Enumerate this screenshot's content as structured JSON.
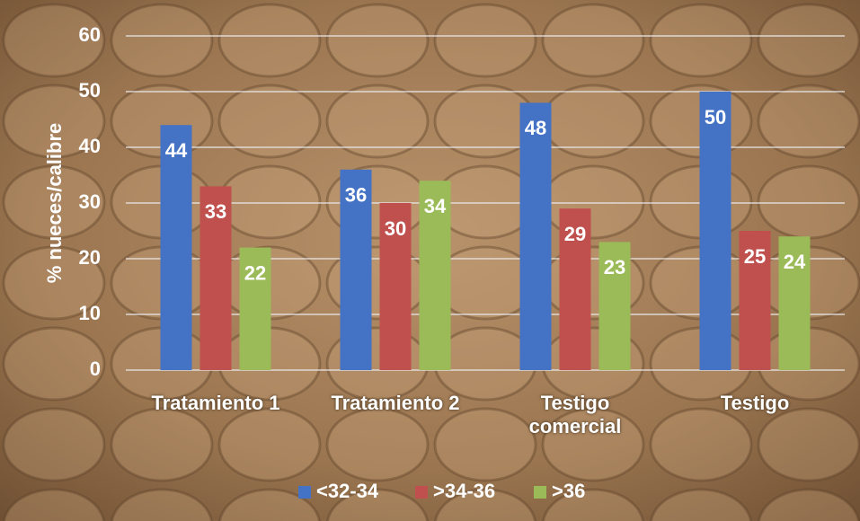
{
  "chart_data": {
    "type": "bar",
    "y_label": "% nueces/calibre",
    "categories": [
      "Tratamiento 1",
      "Tratamiento 2",
      "Testigo comercial",
      "Testigo"
    ],
    "series": [
      {
        "name": "<32-34",
        "color": "#4472c4",
        "values": [
          44,
          36,
          48,
          50
        ]
      },
      {
        "name": ">34-36",
        "color": "#c0504d",
        "values": [
          33,
          30,
          29,
          25
        ]
      },
      {
        "name": ">36",
        "color": "#9bbb59",
        "values": [
          22,
          34,
          23,
          24
        ]
      }
    ],
    "ylim": [
      0,
      60
    ],
    "yticks": [
      0,
      10,
      20,
      30,
      40,
      50,
      60
    ],
    "grid": true,
    "legend": "bottom"
  }
}
